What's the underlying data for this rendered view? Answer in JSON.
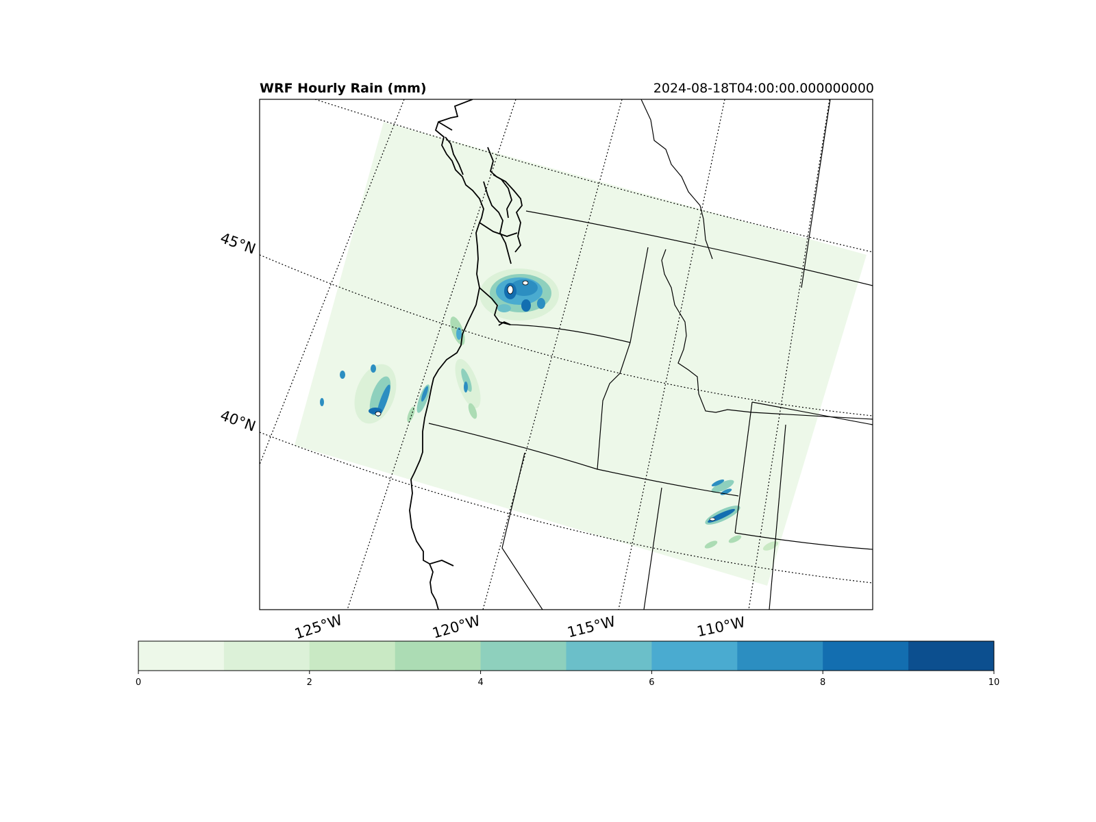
{
  "title": "WRF Hourly Rain (mm)",
  "timestamp": "2024-08-18T04:00:00.000000000",
  "lat_labels": [
    "45°N",
    "40°N"
  ],
  "lon_labels": [
    "125°W",
    "120°W",
    "115°W",
    "110°W"
  ],
  "colorbar": {
    "ticks": [
      "0",
      "2",
      "4",
      "6",
      "8",
      "10"
    ],
    "min": 0,
    "max": 10,
    "colors": [
      "#edf8e9",
      "#dcf1d8",
      "#c9e9c4",
      "#acdcb4",
      "#8ed0bd",
      "#6bbfc9",
      "#4aabd0",
      "#2c8ec1",
      "#136eb0",
      "#0c4f8f"
    ]
  },
  "colors": {
    "domain_fill": "#edf8e9",
    "line": "#000000"
  }
}
